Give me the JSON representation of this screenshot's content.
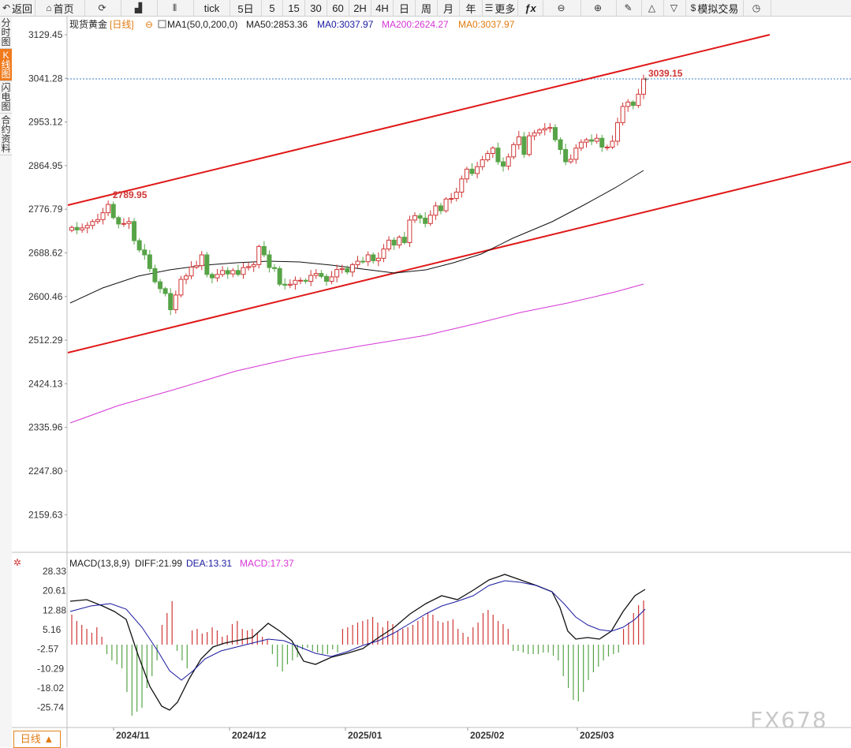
{
  "toolbar": [
    {
      "name": "back-button",
      "icon": "back-arrow-icon",
      "glyph": "↶",
      "label": "返回",
      "w": 45
    },
    {
      "name": "home-button",
      "icon": "home-icon",
      "glyph": "⌂",
      "label": "首页",
      "w": 63
    },
    {
      "name": "refresh-button",
      "icon": "refresh-icon",
      "glyph": "⟳",
      "label": "",
      "w": 46
    },
    {
      "name": "chart-type-button",
      "icon": "bar-chart-icon",
      "glyph": "▟",
      "label": "",
      "w": 46
    },
    {
      "name": "candle-type-button",
      "icon": "candlestick-icon",
      "glyph": "⫴",
      "label": "",
      "w": 46
    },
    {
      "name": "period-tick",
      "icon": "",
      "glyph": "",
      "label": "tick",
      "w": 46
    },
    {
      "name": "period-5day",
      "icon": "",
      "glyph": "",
      "label": "5日",
      "w": 40
    },
    {
      "name": "period-5",
      "icon": "",
      "glyph": "",
      "label": "5",
      "w": 27
    },
    {
      "name": "period-15",
      "icon": "",
      "glyph": "",
      "label": "15",
      "w": 28
    },
    {
      "name": "period-30",
      "icon": "",
      "glyph": "",
      "label": "30",
      "w": 28
    },
    {
      "name": "period-60",
      "icon": "",
      "glyph": "",
      "label": "60",
      "w": 28
    },
    {
      "name": "period-2h",
      "icon": "",
      "glyph": "",
      "label": "2H",
      "w": 28
    },
    {
      "name": "period-4h",
      "icon": "",
      "glyph": "",
      "label": "4H",
      "w": 28
    },
    {
      "name": "period-day",
      "icon": "",
      "glyph": "",
      "label": "日",
      "w": 28
    },
    {
      "name": "period-week",
      "icon": "",
      "glyph": "",
      "label": "周",
      "w": 28
    },
    {
      "name": "period-month",
      "icon": "",
      "glyph": "",
      "label": "月",
      "w": 28
    },
    {
      "name": "period-year",
      "icon": "",
      "glyph": "",
      "label": "年",
      "w": 29
    },
    {
      "name": "more-button",
      "icon": "menu-icon",
      "glyph": "☰",
      "label": "更多",
      "w": 45
    },
    {
      "name": "formula-button",
      "icon": "fx-icon",
      "glyph": "",
      "label": "ƒx",
      "w": 32
    },
    {
      "name": "zoom-out-button",
      "icon": "zoom-out-icon",
      "glyph": "⊖",
      "label": "",
      "w": 48
    },
    {
      "name": "zoom-in-button",
      "icon": "zoom-in-icon",
      "glyph": "⊕",
      "label": "",
      "w": 45
    },
    {
      "name": "draw-button",
      "icon": "pencil-icon",
      "glyph": "✎",
      "label": "",
      "w": 32
    },
    {
      "name": "up-arrow-button",
      "icon": "triangle-up-icon",
      "glyph": "△",
      "label": "",
      "w": 28
    },
    {
      "name": "down-arrow-button",
      "icon": "triangle-down-icon",
      "glyph": "▽",
      "label": "",
      "w": 28
    },
    {
      "name": "sim-trade-button",
      "icon": "dollar-icon",
      "glyph": "$",
      "label": "模拟交易",
      "w": 73
    },
    {
      "name": "clock-button",
      "icon": "clock-icon",
      "glyph": "◷",
      "label": "",
      "w": 35
    }
  ],
  "sidebar": [
    {
      "label": "分时图",
      "active": false
    },
    {
      "label": "K线图",
      "active": true
    },
    {
      "label": "闪电图",
      "active": false
    },
    {
      "label": "合约资料",
      "active": false
    }
  ],
  "legend": {
    "symbol": "现货黄金",
    "period": "[日线]",
    "ma1": "MA1(50,0,200,0)",
    "ma50": "MA50:2853.36",
    "ma0": "MA0:3037.97",
    "ma200": "MA200:2624.27",
    "ma0b": "MA0:3037.97"
  },
  "price_axis": [
    "3129.45",
    "3041.28",
    "2953.12",
    "2864.95",
    "2776.79",
    "2688.62",
    "2600.46",
    "2512.29",
    "2424.13",
    "2335.96",
    "2247.80",
    "2159.63"
  ],
  "annotations": {
    "high": "2789.95",
    "last": "3039.15"
  },
  "macd_legend": {
    "title": "MACD(13,8,9)",
    "diff": "DIFF:21.99",
    "dea": "DEA:13.31",
    "macd": "MACD:17.37"
  },
  "macd_axis": [
    "28.33",
    "20.61",
    "12.88",
    "5.16",
    "-2.57",
    "-10.29",
    "-18.02",
    "-25.74"
  ],
  "date_axis": [
    "2024/11",
    "2024/12",
    "2025/01",
    "2025/02",
    "2025/03"
  ],
  "bottom_tab": "日线 ▲",
  "watermark": "FX678",
  "colors": {
    "up": "#d03535",
    "down": "#56a447",
    "ma50": "#111111",
    "ma200": "#d535d5",
    "trend": "#e01818",
    "diff": "#111111",
    "dea": "#1a1aa0"
  },
  "chart_data": {
    "type": "candlestick",
    "symbol": "现货黄金",
    "period": "日线",
    "ohlc_close_approx": [
      2736,
      2731,
      2735,
      2740,
      2748,
      2752,
      2766,
      2783,
      2756,
      2743,
      2744,
      2748,
      2709,
      2690,
      2680,
      2652,
      2625,
      2611,
      2601,
      2568,
      2598,
      2630,
      2637,
      2655,
      2658,
      2680,
      2640,
      2633,
      2640,
      2648,
      2641,
      2648,
      2640,
      2654,
      2656,
      2660,
      2697,
      2680,
      2654,
      2652,
      2620,
      2618,
      2620,
      2628,
      2628,
      2626,
      2638,
      2642,
      2636,
      2626,
      2635,
      2650,
      2652,
      2645,
      2660,
      2667,
      2666,
      2680,
      2668,
      2673,
      2692,
      2710,
      2700,
      2716,
      2705,
      2751,
      2760,
      2755,
      2744,
      2761,
      2780,
      2770,
      2794,
      2795,
      2808,
      2835,
      2855,
      2846,
      2860,
      2874,
      2887,
      2898,
      2870,
      2861,
      2880,
      2905,
      2921,
      2885,
      2923,
      2929,
      2935,
      2938,
      2940,
      2915,
      2895,
      2870,
      2875,
      2898,
      2910,
      2915,
      2912,
      2918,
      2900,
      2900,
      2912,
      2950,
      2983,
      2992,
      2985,
      3008,
      3039
    ],
    "y_range": [
      2159.63,
      3129.45
    ],
    "ma50": {
      "start": 2600,
      "end": 2853.36
    },
    "ma200": {
      "start": 2335,
      "end": 2624.27
    },
    "macd": {
      "diff": 21.99,
      "dea": 13.31,
      "macd": 17.37,
      "y_range": [
        -25.74,
        28.33
      ]
    }
  }
}
